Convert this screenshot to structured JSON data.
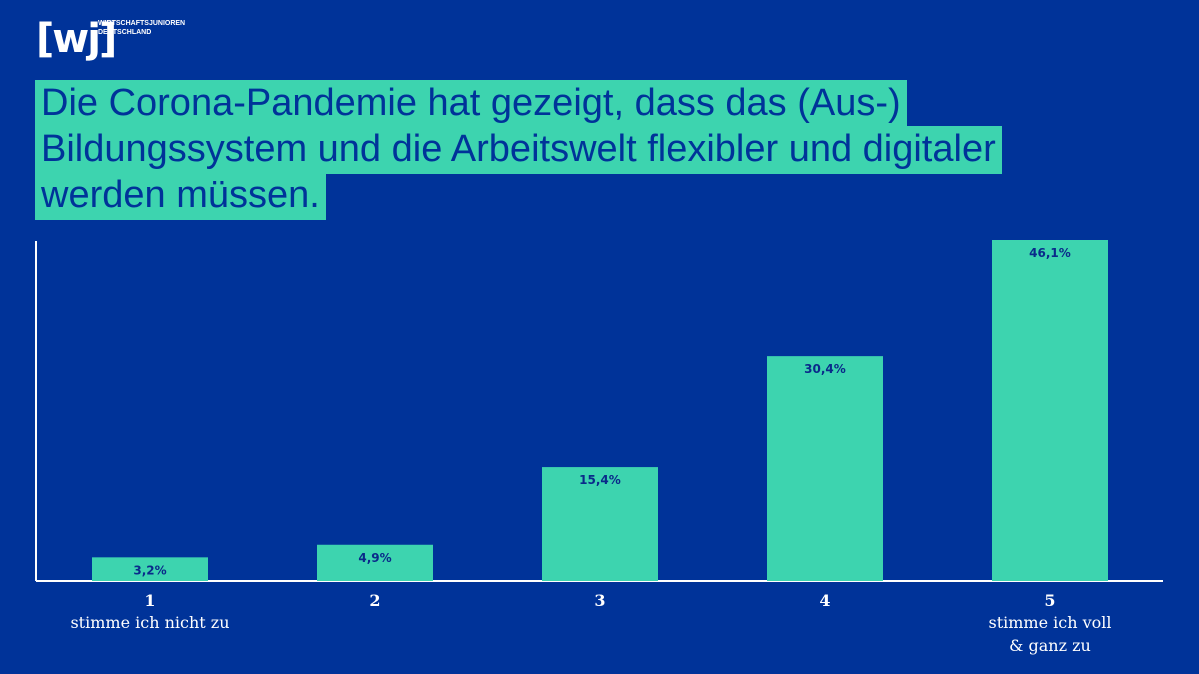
{
  "logo": {
    "mark": "[wj]",
    "line1": "WIRTSCHAFTSJUNIOREN",
    "line2": "DEUTSCHLAND"
  },
  "title": "Die Corona-Pandemie hat gezeigt, dass das (Aus-) Bildungssystem und die Arbeitswelt flexibler und digitaler werden müssen.",
  "colors": {
    "background": "#003399",
    "bar": "#3dd4af",
    "axis": "#ffffff"
  },
  "chart_data": {
    "type": "bar",
    "categories": [
      "1",
      "2",
      "3",
      "4",
      "5"
    ],
    "category_descriptions": [
      [
        "stimme ich nicht zu"
      ],
      [],
      [],
      [],
      [
        "stimme ich voll",
        "& ganz zu"
      ]
    ],
    "values": [
      3.2,
      4.9,
      15.4,
      30.4,
      46.1
    ],
    "value_labels": [
      "3,2%",
      "4,9%",
      "15,4%",
      "30,4%",
      "46,1%"
    ],
    "title": "Die Corona-Pandemie hat gezeigt, dass das (Aus-) Bildungssystem und die Arbeitswelt flexibler und digitaler werden müssen.",
    "xlabel": "",
    "ylabel": "",
    "ylim": [
      0,
      46.1
    ],
    "grid": false,
    "legend": "none"
  }
}
